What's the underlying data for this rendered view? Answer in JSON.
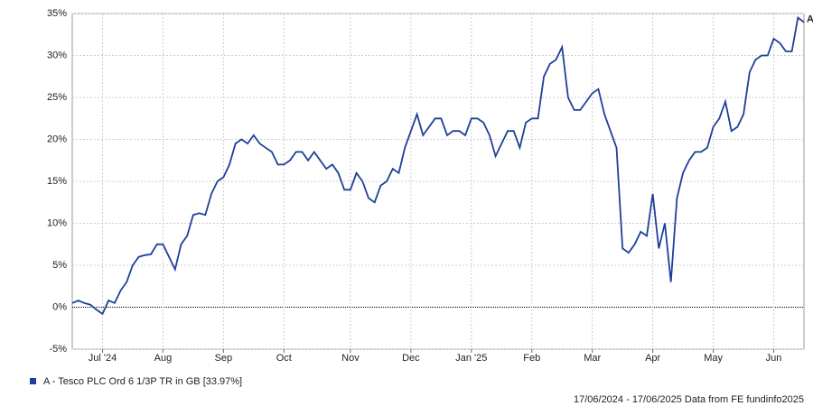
{
  "chart_data": {
    "type": "line",
    "categories": [
      null,
      null,
      null,
      null,
      null,
      "Jul '24",
      null,
      null,
      null,
      null,
      null,
      null,
      null,
      null,
      null,
      "Aug",
      null,
      null,
      null,
      null,
      null,
      null,
      null,
      null,
      null,
      "Sep",
      null,
      null,
      null,
      null,
      null,
      null,
      null,
      null,
      null,
      "Oct",
      null,
      null,
      null,
      null,
      null,
      null,
      null,
      null,
      null,
      null,
      "Nov",
      null,
      null,
      null,
      null,
      null,
      null,
      null,
      null,
      null,
      "Dec",
      null,
      null,
      null,
      null,
      null,
      null,
      null,
      null,
      null,
      "Jan '25",
      null,
      null,
      null,
      null,
      null,
      null,
      null,
      null,
      null,
      "Feb",
      null,
      null,
      null,
      null,
      null,
      null,
      null,
      null,
      null,
      "Mar",
      null,
      null,
      null,
      null,
      null,
      null,
      null,
      null,
      null,
      "Apr",
      null,
      null,
      null,
      null,
      null,
      null,
      null,
      null,
      null,
      "May",
      null,
      null,
      null,
      null,
      null,
      null,
      null,
      null,
      null,
      "Jun",
      null,
      null,
      null,
      null,
      null
    ],
    "series": [
      {
        "name": "A - Tesco PLC Ord 6 1/3P TR in GB [33.97%]",
        "color": "#1f3f99",
        "values": [
          0.5,
          0.8,
          0.5,
          0.3,
          -0.3,
          -0.8,
          0.8,
          0.5,
          2,
          3,
          5,
          6,
          6.2,
          6.3,
          7.5,
          7.5,
          6,
          4.5,
          7.5,
          8.5,
          11,
          11.2,
          11,
          13.5,
          15,
          15.5,
          17,
          19.5,
          20,
          19.5,
          20.5,
          19.5,
          19,
          18.5,
          17,
          17,
          17.5,
          18.5,
          18.5,
          17.5,
          18.5,
          17.5,
          16.5,
          17,
          16,
          14,
          14,
          16,
          15,
          13,
          12.5,
          14.5,
          15,
          16.5,
          16,
          19,
          21,
          23,
          20.5,
          21.5,
          22.5,
          22.5,
          20.5,
          21,
          21,
          20.5,
          22.5,
          22.5,
          22,
          20.5,
          18,
          19.5,
          21,
          21,
          19,
          22,
          22.5,
          22.5,
          27.5,
          29,
          29.5,
          31,
          25,
          23.5,
          23.5,
          24.5,
          25.5,
          26,
          23,
          21,
          19,
          7,
          6.5,
          7.5,
          9,
          8.5,
          13.5,
          7,
          10,
          3,
          13,
          16,
          17.5,
          18.5,
          18.5,
          19,
          21.5,
          22.5,
          24.5,
          21,
          21.5,
          23,
          28,
          29.5,
          30,
          30,
          32,
          31.5,
          30.5,
          30.5,
          34.5,
          33.97
        ]
      }
    ],
    "end_label": "A",
    "ylim": [
      -5,
      35
    ],
    "yticks": [
      {
        "value": -5,
        "label": "-5%"
      },
      {
        "value": 0,
        "label": "0%"
      },
      {
        "value": 5,
        "label": "5%"
      },
      {
        "value": 10,
        "label": "10%"
      },
      {
        "value": 15,
        "label": "15%"
      },
      {
        "value": 20,
        "label": "20%"
      },
      {
        "value": 25,
        "label": "25%"
      },
      {
        "value": 30,
        "label": "30%"
      },
      {
        "value": 35,
        "label": "35%"
      }
    ],
    "grid": true,
    "footer": "17/06/2024 - 17/06/2025 Data from FE fundinfo2025"
  }
}
